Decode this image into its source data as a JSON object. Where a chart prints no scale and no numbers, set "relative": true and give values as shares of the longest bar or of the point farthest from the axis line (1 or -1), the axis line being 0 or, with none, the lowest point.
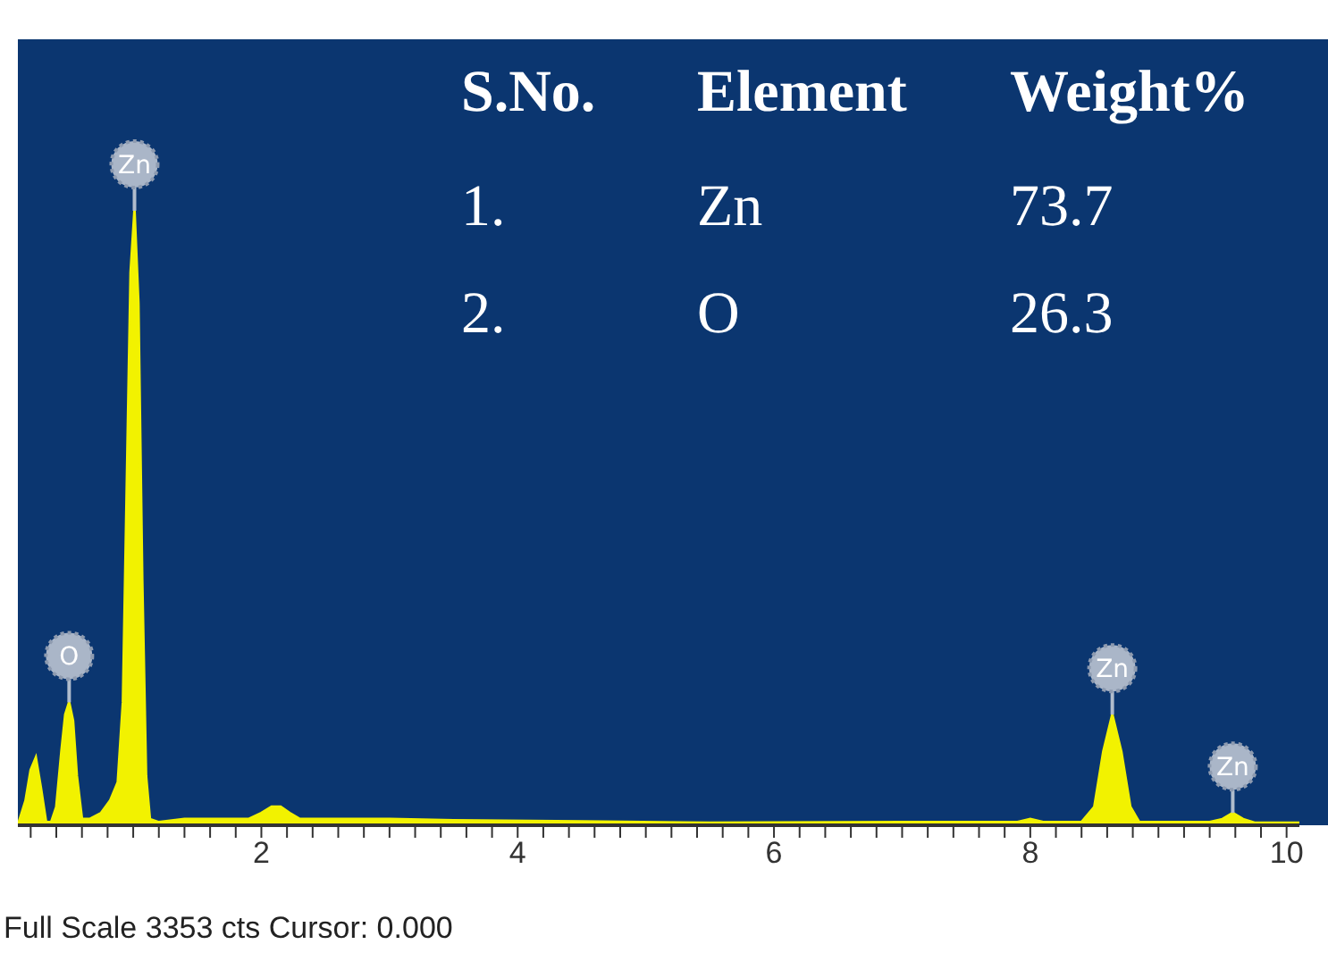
{
  "chart_data": {
    "type": "area",
    "relative": true,
    "x": [
      0.1,
      0.16,
      0.2,
      0.24,
      0.28,
      0.32,
      0.36,
      0.4,
      0.44,
      0.47,
      0.5,
      0.53,
      0.56,
      0.6,
      0.66,
      0.75,
      0.82,
      0.88,
      0.92,
      0.95,
      0.98,
      1.01,
      1.04,
      1.07,
      1.1,
      1.13,
      1.2,
      1.4,
      1.9,
      2.0,
      2.08,
      2.15,
      2.22,
      2.3,
      3.0,
      3.5,
      4.5,
      5.5,
      7.0,
      7.9,
      8.0,
      8.1,
      8.4,
      8.5,
      8.57,
      8.64,
      8.71,
      8.78,
      8.85,
      9.4,
      9.5,
      9.58,
      9.66,
      9.75,
      10.1
    ],
    "series": [
      {
        "color": "#f2f200",
        "values": [
          0.0,
          0.04,
          0.09,
          0.11,
          0.06,
          0.005,
          0.005,
          0.03,
          0.12,
          0.18,
          0.2,
          0.17,
          0.08,
          0.01,
          0.01,
          0.02,
          0.04,
          0.07,
          0.2,
          0.55,
          0.9,
          1.0,
          0.85,
          0.4,
          0.08,
          0.01,
          0.005,
          0.01,
          0.01,
          0.02,
          0.03,
          0.03,
          0.02,
          0.01,
          0.01,
          0.008,
          0.006,
          0.004,
          0.005,
          0.005,
          0.01,
          0.005,
          0.005,
          0.03,
          0.12,
          0.18,
          0.12,
          0.03,
          0.005,
          0.005,
          0.01,
          0.02,
          0.01,
          0.004,
          0.004
        ]
      }
    ],
    "xlim": [
      0.1,
      10.1
    ],
    "xticks": [
      {
        "value": 0.2,
        "label": null
      },
      {
        "value": 0.4,
        "label": null
      },
      {
        "value": 0.6,
        "label": null
      },
      {
        "value": 0.8,
        "label": null
      },
      {
        "value": 1,
        "label": null
      },
      {
        "value": 1.2,
        "label": null
      },
      {
        "value": 1.4,
        "label": null
      },
      {
        "value": 1.6,
        "label": null
      },
      {
        "value": 1.8,
        "label": null
      },
      2,
      {
        "value": 2.2,
        "label": null
      },
      {
        "value": 2.4,
        "label": null
      },
      {
        "value": 2.6,
        "label": null
      },
      {
        "value": 2.8,
        "label": null
      },
      {
        "value": 3,
        "label": null
      },
      {
        "value": 3.2,
        "label": null
      },
      {
        "value": 3.4,
        "label": null
      },
      {
        "value": 3.6,
        "label": null
      },
      {
        "value": 3.8,
        "label": null
      },
      4,
      {
        "value": 4.2,
        "label": null
      },
      {
        "value": 4.4,
        "label": null
      },
      {
        "value": 4.6,
        "label": null
      },
      {
        "value": 4.8,
        "label": null
      },
      {
        "value": 5,
        "label": null
      },
      {
        "value": 5.2,
        "label": null
      },
      {
        "value": 5.4,
        "label": null
      },
      {
        "value": 5.6,
        "label": null
      },
      {
        "value": 5.8,
        "label": null
      },
      6,
      {
        "value": 6.2,
        "label": null
      },
      {
        "value": 6.4,
        "label": null
      },
      {
        "value": 6.6,
        "label": null
      },
      {
        "value": 6.8,
        "label": null
      },
      {
        "value": 7,
        "label": null
      },
      {
        "value": 7.2,
        "label": null
      },
      {
        "value": 7.4,
        "label": null
      },
      {
        "value": 7.6,
        "label": null
      },
      {
        "value": 7.8,
        "label": null
      },
      8,
      {
        "value": 8.2,
        "label": null
      },
      {
        "value": 8.4,
        "label": null
      },
      {
        "value": 8.6,
        "label": null
      },
      {
        "value": 8.8,
        "label": null
      },
      {
        "value": 9,
        "label": null
      },
      {
        "value": 9.2,
        "label": null
      },
      {
        "value": 9.4,
        "label": null
      },
      {
        "value": 9.6,
        "label": null
      },
      {
        "value": 9.8,
        "label": null
      },
      10
    ],
    "annotations": [
      "Full Scale 3353 cts Cursor: 0.000",
      "S.No.",
      "Element",
      "Weight%",
      "1.",
      "Zn",
      "73.7",
      "2.",
      "O",
      "26.3",
      {
        "text": "O",
        "x": 0.5,
        "y": 0.2
      },
      {
        "text": "Zn",
        "x": 1.01,
        "y": 1.0
      },
      {
        "text": "Zn",
        "x": 8.64,
        "y": 0.18
      },
      {
        "text": "Zn",
        "x": 9.58,
        "y": 0.02
      }
    ]
  }
}
